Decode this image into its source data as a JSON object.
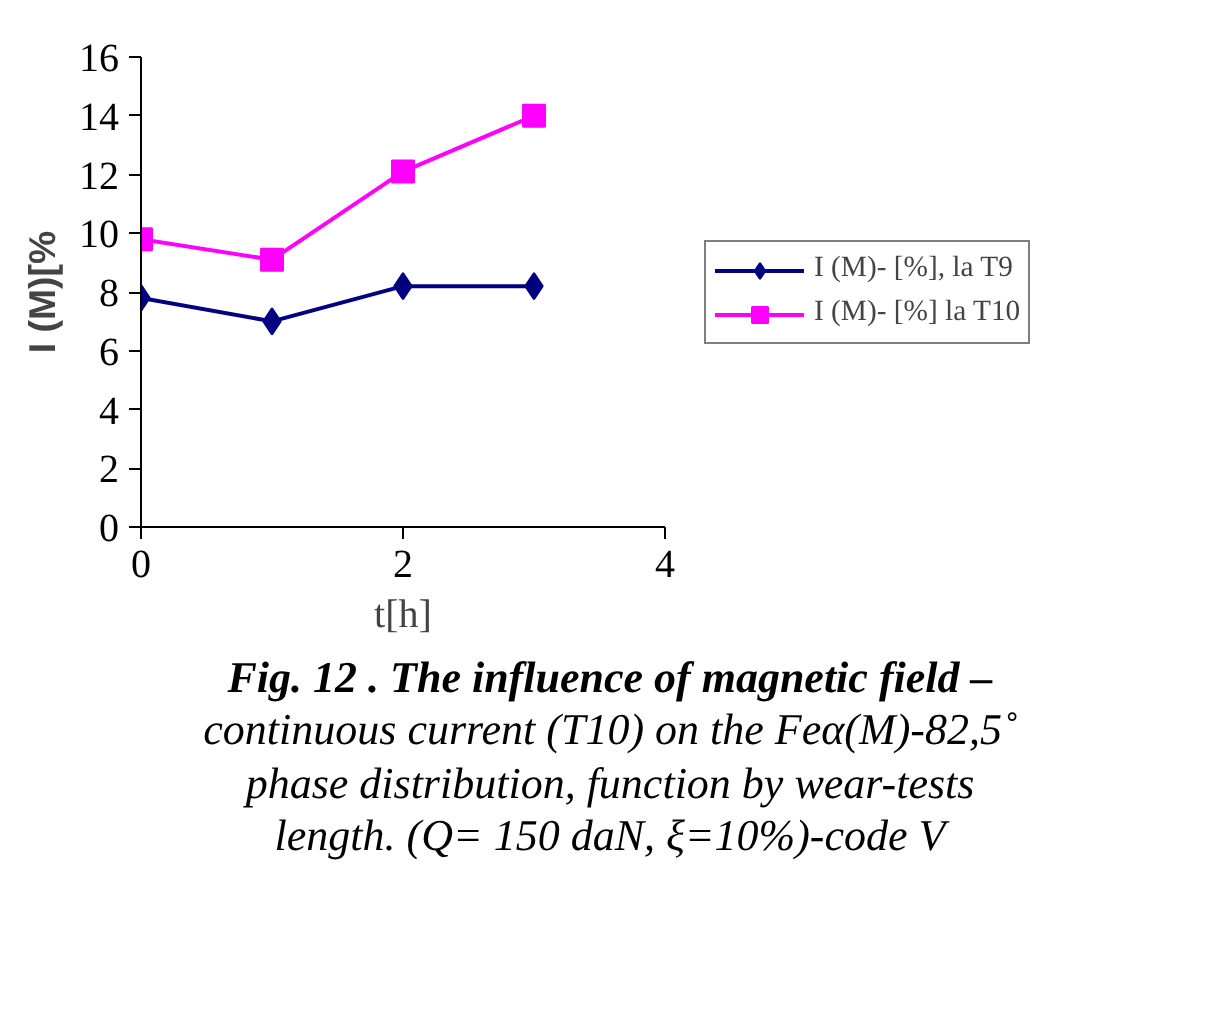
{
  "chart_data": {
    "type": "line",
    "xlabel": "t[h]",
    "ylabel": "I (M)[%",
    "x": [
      0,
      1,
      2,
      3
    ],
    "series": [
      {
        "name": "I (M)- [%], la T9",
        "color": "#000080",
        "values": [
          7.8,
          7.0,
          8.2,
          8.2
        ],
        "marker": "diamond"
      },
      {
        "name": "I (M)- [%] la T10",
        "color": "#ff00ff",
        "values": [
          9.8,
          9.1,
          12.1,
          14.0
        ],
        "marker": "square"
      }
    ],
    "xlim": [
      0,
      4
    ],
    "xticks": [
      0,
      2,
      4
    ],
    "ylim": [
      0,
      16
    ],
    "yticks": [
      0,
      2,
      4,
      6,
      8,
      10,
      12,
      14,
      16
    ],
    "grid": false,
    "legend": "right",
    "line_style": "solid",
    "annotations": [
      "Fig. 12 . The influence of magnetic field –",
      "continuous  current (T10) on the  Feα(M)-82,5˚",
      "phase distribution, function by wear-tests",
      "length. (Q= 150 daN, ξ=10%)-code V"
    ]
  }
}
